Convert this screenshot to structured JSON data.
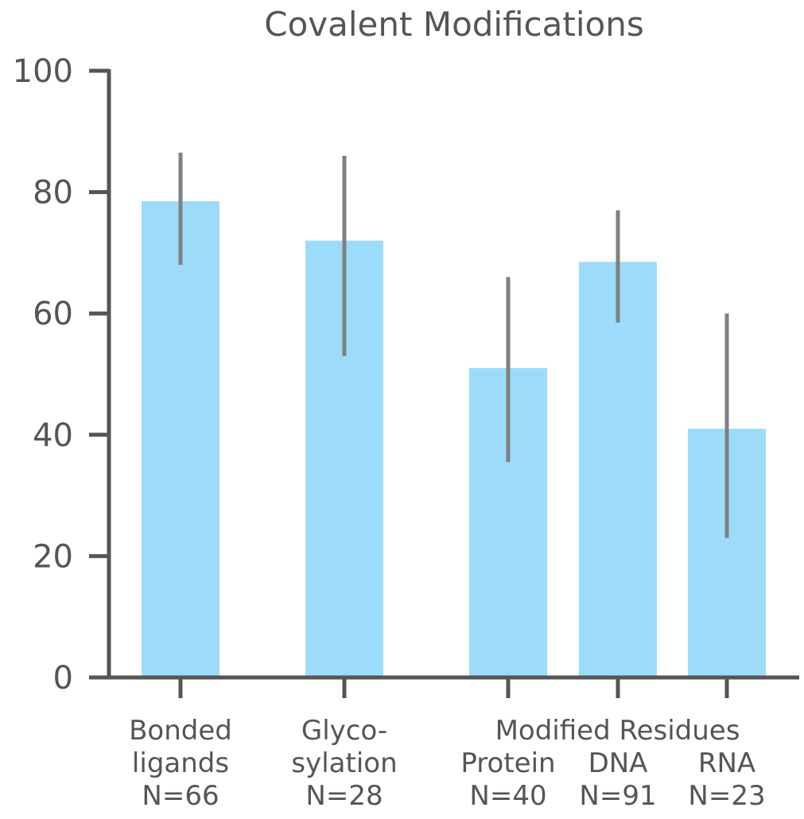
{
  "chart_data": {
    "type": "bar",
    "title": "Covalent Modifications",
    "ylim": [
      0,
      100
    ],
    "yticks": [
      0,
      20,
      40,
      60,
      80,
      100
    ],
    "group_label": "Modified Residues",
    "categories": [
      {
        "label_lines": [
          "Bonded",
          "ligands",
          "N=66"
        ],
        "value": 78.5,
        "err_low": 68,
        "err_high": 86.5
      },
      {
        "label_lines": [
          "Glyco-",
          "sylation",
          "N=28"
        ],
        "value": 72,
        "err_low": 53,
        "err_high": 86
      },
      {
        "label_lines": [
          "Protein",
          "N=40"
        ],
        "value": 51,
        "err_low": 35.5,
        "err_high": 66
      },
      {
        "label_lines": [
          "DNA",
          "N=91"
        ],
        "value": 68.5,
        "err_low": 58.5,
        "err_high": 77
      },
      {
        "label_lines": [
          "RNA",
          "N=23"
        ],
        "value": 41,
        "err_low": 23,
        "err_high": 60
      }
    ],
    "colors": {
      "bar": "#9ddbfb",
      "error": "#808080",
      "axis": "#555555"
    }
  }
}
